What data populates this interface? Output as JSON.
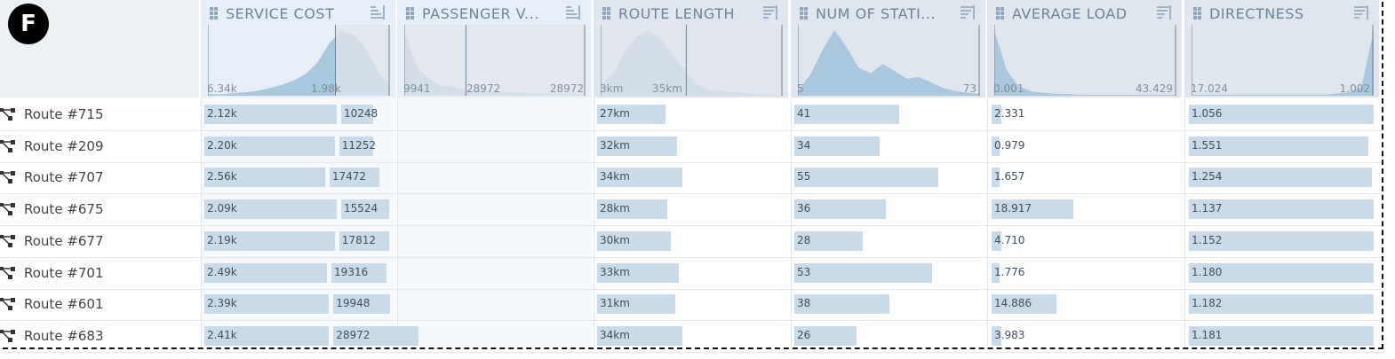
{
  "badge": "F",
  "colors": {
    "bar": "#c9dae8",
    "hist": "#a9c8de",
    "hist_other": "#d7dee5",
    "header_bg": "#e4ebf3"
  },
  "columns": [
    {
      "key": "cost",
      "title": "SERVICE COST",
      "sort": "asc",
      "min": "6.34k",
      "max": "1.98k",
      "hist": [
        2,
        2,
        3,
        4,
        6,
        9,
        13,
        18,
        26,
        40,
        64,
        80,
        74,
        58,
        30,
        12
      ],
      "hist_other_from": 0.7
    },
    {
      "key": "pass",
      "title": "PASSENGER V...",
      "sort": "asc",
      "min": "9941",
      "max": "28972",
      "hist": [
        62,
        28,
        16,
        10,
        8,
        6,
        5,
        4,
        4,
        3,
        3,
        2,
        2,
        2,
        2,
        1
      ],
      "hist_other_from": 0.0
    },
    {
      "key": "length",
      "title": "ROUTE LENGTH",
      "sort": "desc",
      "min": "3km",
      "max": "35km",
      "hist": [
        12,
        28,
        55,
        74,
        82,
        70,
        50,
        30,
        14,
        8,
        6,
        4,
        3,
        2,
        1,
        0
      ],
      "hist_other_from": 0.0
    },
    {
      "key": "stations",
      "title": "NUM OF STATI...",
      "sort": "desc",
      "min": "5",
      "max": "73",
      "hist": [
        6,
        22,
        48,
        70,
        52,
        30,
        24,
        34,
        26,
        18,
        20,
        14,
        8,
        5,
        3,
        2
      ],
      "hist_other_from": 1.0
    },
    {
      "key": "load",
      "title": "AVERAGE LOAD",
      "sort": "desc",
      "min": "0.001",
      "max": "43.429",
      "hist": [
        70,
        28,
        10,
        5,
        3,
        2,
        2,
        1,
        1,
        1,
        1,
        1,
        1,
        1,
        1,
        1
      ],
      "hist_other_from": 1.0
    },
    {
      "key": "direct",
      "title": "DIRECTNESS",
      "sort": "desc",
      "min": "17.024",
      "max": "1.002",
      "hist": [
        1,
        1,
        1,
        1,
        1,
        1,
        1,
        1,
        1,
        1,
        1,
        1,
        2,
        3,
        8,
        60
      ],
      "hist_other_from": 1.0
    }
  ],
  "rows": [
    {
      "label": "Route #715",
      "cost": "2.12k",
      "cost_f": 0.68,
      "pass": "10248",
      "pass_f": 0.18,
      "length": "27km",
      "length_f": 0.35,
      "stations": "41",
      "stations_f": 0.54,
      "load": "2.331",
      "load_f": 0.05,
      "direct": "1.056",
      "direct_f": 0.99
    },
    {
      "label": "Route #209",
      "cost": "2.20k",
      "cost_f": 0.67,
      "pass": "11252",
      "pass_f": 0.19,
      "length": "32km",
      "length_f": 0.41,
      "stations": "34",
      "stations_f": 0.44,
      "load": "0.979",
      "load_f": 0.04,
      "direct": "1.551",
      "direct_f": 0.96
    },
    {
      "label": "Route #707",
      "cost": "2.56k",
      "cost_f": 0.62,
      "pass": "17472",
      "pass_f": 0.28,
      "length": "34km",
      "length_f": 0.44,
      "stations": "55",
      "stations_f": 0.74,
      "load": "1.657",
      "load_f": 0.04,
      "direct": "1.254",
      "direct_f": 0.98
    },
    {
      "label": "Route #675",
      "cost": "2.09k",
      "cost_f": 0.68,
      "pass": "15524",
      "pass_f": 0.27,
      "length": "28km",
      "length_f": 0.36,
      "stations": "36",
      "stations_f": 0.47,
      "load": "18.917",
      "load_f": 0.43,
      "direct": "1.137",
      "direct_f": 0.99
    },
    {
      "label": "Route #677",
      "cost": "2.19k",
      "cost_f": 0.67,
      "pass": "17812",
      "pass_f": 0.28,
      "length": "30km",
      "length_f": 0.38,
      "stations": "28",
      "stations_f": 0.35,
      "load": "4.710",
      "load_f": 0.05,
      "direct": "1.152",
      "direct_f": 0.99
    },
    {
      "label": "Route #701",
      "cost": "2.49k",
      "cost_f": 0.63,
      "pass": "19316",
      "pass_f": 0.31,
      "length": "33km",
      "length_f": 0.42,
      "stations": "53",
      "stations_f": 0.71,
      "load": "1.776",
      "load_f": 0.04,
      "direct": "1.180",
      "direct_f": 0.99
    },
    {
      "label": "Route #601",
      "cost": "2.39k",
      "cost_f": 0.64,
      "pass": "19948",
      "pass_f": 0.32,
      "length": "31km",
      "length_f": 0.4,
      "stations": "38",
      "stations_f": 0.49,
      "load": "14.886",
      "load_f": 0.34,
      "direct": "1.182",
      "direct_f": 0.99
    },
    {
      "label": "Route #683",
      "cost": "2.41k",
      "cost_f": 0.64,
      "pass": "28972",
      "pass_f": 0.48,
      "length": "34km",
      "length_f": 0.44,
      "stations": "26",
      "stations_f": 0.32,
      "load": "3.983",
      "load_f": 0.05,
      "direct": "1.181",
      "direct_f": 0.99
    }
  ]
}
